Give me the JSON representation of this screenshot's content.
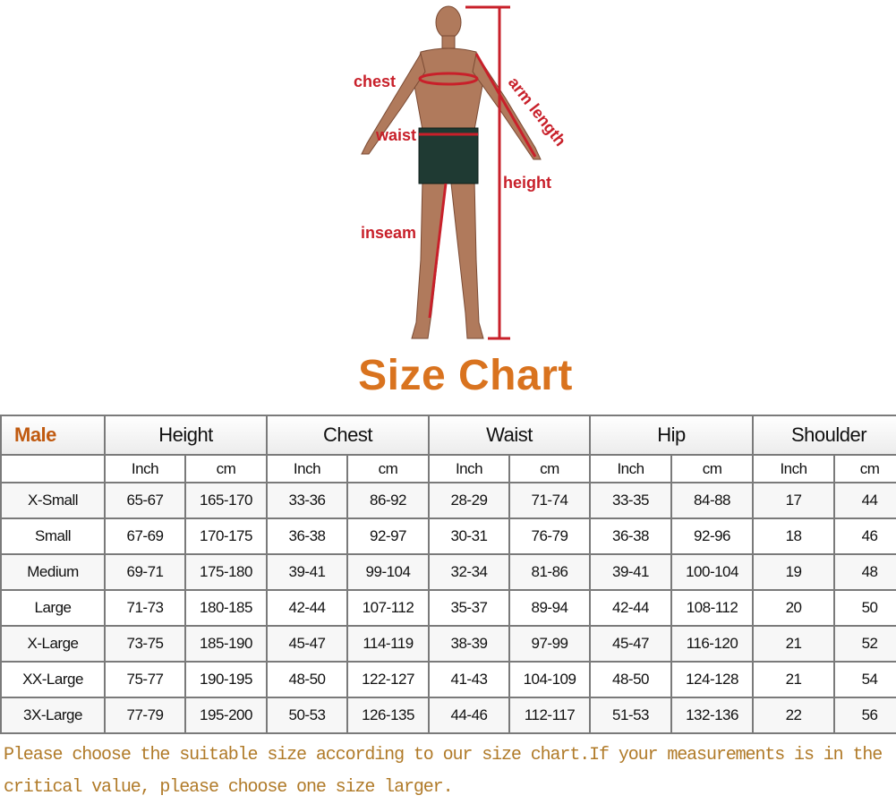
{
  "figure": {
    "labels": {
      "chest": "chest",
      "waist": "waist",
      "inseam": "inseam",
      "arm_length": "arm length",
      "height": "height"
    },
    "measure_color": "#c8202a"
  },
  "title": "Size Chart",
  "table": {
    "corner_label": "Male",
    "groups": [
      "Height",
      "Chest",
      "Waist",
      "Hip",
      "Shoulder"
    ],
    "units": [
      "Inch",
      "cm",
      "Inch",
      "cm",
      "Inch",
      "cm",
      "Inch",
      "cm",
      "Inch",
      "cm"
    ],
    "rows": [
      {
        "size": "X-Small",
        "values": [
          "65-67",
          "165-170",
          "33-36",
          "86-92",
          "28-29",
          "71-74",
          "33-35",
          "84-88",
          "17",
          "44"
        ]
      },
      {
        "size": "Small",
        "values": [
          "67-69",
          "170-175",
          "36-38",
          "92-97",
          "30-31",
          "76-79",
          "36-38",
          "92-96",
          "18",
          "46"
        ]
      },
      {
        "size": "Medium",
        "values": [
          "69-71",
          "175-180",
          "39-41",
          "99-104",
          "32-34",
          "81-86",
          "39-41",
          "100-104",
          "19",
          "48"
        ]
      },
      {
        "size": "Large",
        "values": [
          "71-73",
          "180-185",
          "42-44",
          "107-112",
          "35-37",
          "89-94",
          "42-44",
          "108-112",
          "20",
          "50"
        ]
      },
      {
        "size": "X-Large",
        "values": [
          "73-75",
          "185-190",
          "45-47",
          "114-119",
          "38-39",
          "97-99",
          "45-47",
          "116-120",
          "21",
          "52"
        ]
      },
      {
        "size": "XX-Large",
        "values": [
          "75-77",
          "190-195",
          "48-50",
          "122-127",
          "41-43",
          "104-109",
          "48-50",
          "124-128",
          "21",
          "54"
        ]
      },
      {
        "size": "3X-Large",
        "values": [
          "77-79",
          "195-200",
          "50-53",
          "126-135",
          "44-46",
          "112-117",
          "51-53",
          "132-136",
          "22",
          "56"
        ]
      }
    ]
  },
  "note": "Please choose the suitable size according to our size chart.If your measurements is in the critical value, please choose one size larger."
}
